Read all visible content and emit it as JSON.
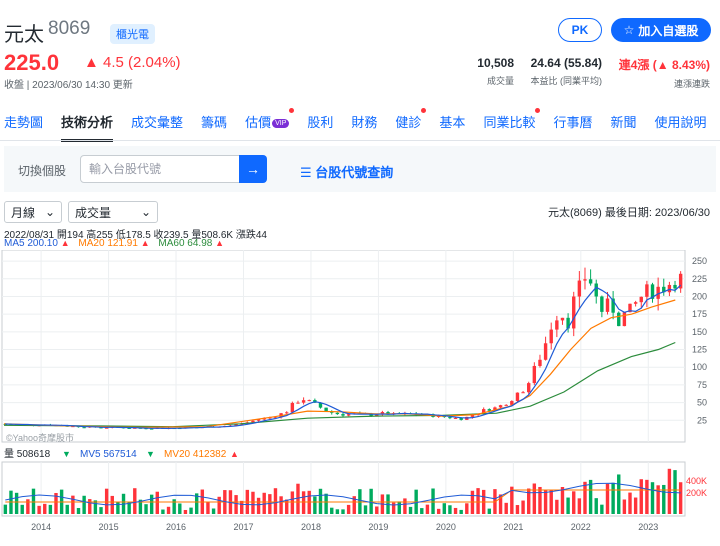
{
  "stock": {
    "name": "元太",
    "code": "8069",
    "badge": "櫃光電"
  },
  "quote": {
    "price": "225.0",
    "change": "▲ 4.5 (2.04%)",
    "meta": "收盤 | 2023/06/30 14:30 更新"
  },
  "actions": {
    "pk": "PK",
    "watchlist": "加入自選股"
  },
  "stats": [
    {
      "value": "10,508",
      "label": "成交量"
    },
    {
      "value": "24.64 (55.84)",
      "label": "本益比 (同業平均)"
    },
    {
      "value": "連4漲 (▲ 8.43%)",
      "label": "連漲連跌"
    }
  ],
  "nav": [
    {
      "label": "走勢圖"
    },
    {
      "label": "技術分析"
    },
    {
      "label": "成交彙整"
    },
    {
      "label": "籌碼"
    },
    {
      "label": "估價",
      "vip": "VIP"
    },
    {
      "label": "股利"
    },
    {
      "label": "財務"
    },
    {
      "label": "健診"
    },
    {
      "label": "基本"
    },
    {
      "label": "同業比較"
    },
    {
      "label": "行事曆"
    },
    {
      "label": "新聞"
    },
    {
      "label": "使用說明"
    }
  ],
  "search": {
    "label": "切換個股",
    "placeholder": "輸入台股代號",
    "lookup": "台股代號查詢"
  },
  "controls": {
    "period": "月線",
    "indicator": "成交量",
    "last_date": "元太(8069)  最後日期: 2023/06/30"
  },
  "ohlc_line": "2022/08/31 開194 高255 低178.5 收239.5 量508.6K 漲跌44",
  "ma_legend": [
    {
      "label": "MA5 200.10",
      "color": "#1f5bd6"
    },
    {
      "label": "MA20 121.91",
      "color": "#ff7a00"
    },
    {
      "label": "MA60 64.98",
      "color": "#2c8c3c"
    }
  ],
  "vol_legend": [
    {
      "label": "量 508618",
      "color": "#232a31"
    },
    {
      "label": "MV5 567514",
      "color": "#1f5bd6"
    },
    {
      "label": "MV20 412382",
      "color": "#ff7a00"
    }
  ],
  "watermark": "©Yahoo奇摩股市",
  "chart_data": {
    "type": "candlestick",
    "ylim": [
      0,
      260
    ],
    "yticks": [
      25,
      50,
      75,
      100,
      125,
      150,
      175,
      200,
      225,
      250
    ],
    "vol_ticks": [
      "400K",
      "200K"
    ],
    "xticks": [
      "2014",
      "2015",
      "2016",
      "2017",
      "2018",
      "2019",
      "2020",
      "2021",
      "2022",
      "2023"
    ],
    "x_range": [
      2013.5,
      2023.55
    ],
    "price_series": [
      [
        2013.5,
        20
      ],
      [
        2013.8,
        18
      ],
      [
        2014.0,
        19
      ],
      [
        2014.3,
        18
      ],
      [
        2014.6,
        16
      ],
      [
        2014.9,
        15
      ],
      [
        2015.2,
        15
      ],
      [
        2015.5,
        14
      ],
      [
        2015.8,
        14
      ],
      [
        2016.0,
        14
      ],
      [
        2016.3,
        15
      ],
      [
        2016.6,
        16
      ],
      [
        2016.9,
        18
      ],
      [
        2017.1,
        22
      ],
      [
        2017.3,
        27
      ],
      [
        2017.5,
        30
      ],
      [
        2017.7,
        38
      ],
      [
        2017.8,
        50
      ],
      [
        2017.95,
        55
      ],
      [
        2018.1,
        48
      ],
      [
        2018.3,
        37
      ],
      [
        2018.5,
        33
      ],
      [
        2018.7,
        34
      ],
      [
        2018.9,
        32
      ],
      [
        2019.1,
        35
      ],
      [
        2019.3,
        33
      ],
      [
        2019.5,
        34
      ],
      [
        2019.7,
        33
      ],
      [
        2019.9,
        31
      ],
      [
        2020.1,
        29
      ],
      [
        2020.3,
        27
      ],
      [
        2020.45,
        33
      ],
      [
        2020.6,
        39
      ],
      [
        2020.8,
        43
      ],
      [
        2020.95,
        50
      ],
      [
        2021.1,
        60
      ],
      [
        2021.25,
        72
      ],
      [
        2021.35,
        95
      ],
      [
        2021.45,
        115
      ],
      [
        2021.55,
        140
      ],
      [
        2021.65,
        170
      ],
      [
        2021.75,
        180
      ],
      [
        2021.85,
        160
      ],
      [
        2021.95,
        195
      ],
      [
        2022.05,
        215
      ],
      [
        2022.15,
        235
      ],
      [
        2022.25,
        205
      ],
      [
        2022.35,
        180
      ],
      [
        2022.5,
        190
      ],
      [
        2022.6,
        165
      ],
      [
        2022.7,
        175
      ],
      [
        2022.8,
        180
      ],
      [
        2022.9,
        195
      ],
      [
        2023.0,
        205
      ],
      [
        2023.15,
        210
      ],
      [
        2023.3,
        215
      ],
      [
        2023.45,
        225
      ]
    ],
    "ma20_series": [
      [
        2013.5,
        20
      ],
      [
        2014.5,
        17
      ],
      [
        2015.5,
        15
      ],
      [
        2016.5,
        16
      ],
      [
        2017.5,
        30
      ],
      [
        2018.0,
        38
      ],
      [
        2018.5,
        37
      ],
      [
        2019.0,
        34
      ],
      [
        2019.5,
        34
      ],
      [
        2020.0,
        31
      ],
      [
        2020.5,
        33
      ],
      [
        2021.0,
        45
      ],
      [
        2021.3,
        60
      ],
      [
        2021.6,
        90
      ],
      [
        2021.9,
        125
      ],
      [
        2022.2,
        155
      ],
      [
        2022.5,
        170
      ],
      [
        2022.8,
        175
      ],
      [
        2023.1,
        185
      ],
      [
        2023.45,
        195
      ]
    ],
    "ma60_series": [
      [
        2013.5,
        18
      ],
      [
        2015.0,
        17
      ],
      [
        2016.0,
        16
      ],
      [
        2017.0,
        20
      ],
      [
        2018.0,
        28
      ],
      [
        2019.0,
        31
      ],
      [
        2020.0,
        32
      ],
      [
        2020.8,
        35
      ],
      [
        2021.3,
        45
      ],
      [
        2021.8,
        65
      ],
      [
        2022.3,
        95
      ],
      [
        2022.8,
        115
      ],
      [
        2023.2,
        125
      ],
      [
        2023.45,
        135
      ]
    ]
  }
}
